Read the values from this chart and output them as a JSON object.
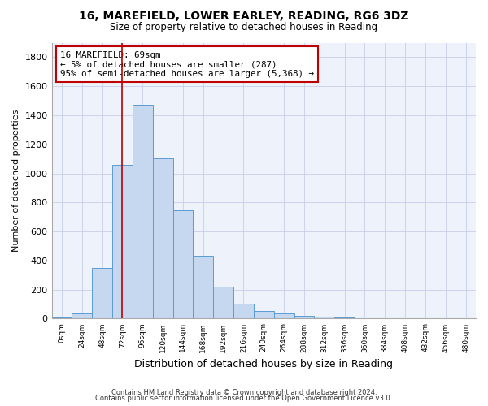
{
  "title1": "16, MAREFIELD, LOWER EARLEY, READING, RG6 3DZ",
  "title2": "Size of property relative to detached houses in Reading",
  "xlabel": "Distribution of detached houses by size in Reading",
  "ylabel": "Number of detached properties",
  "bar_values": [
    10,
    35,
    350,
    1060,
    1470,
    1105,
    745,
    430,
    220,
    105,
    50,
    35,
    20,
    15,
    10,
    5,
    3,
    2,
    2,
    1,
    0
  ],
  "bar_color": "#c5d8f0",
  "bar_edge_color": "#5b9bd5",
  "tick_labels": [
    "0sqm",
    "24sqm",
    "48sqm",
    "72sqm",
    "96sqm",
    "120sqm",
    "144sqm",
    "168sqm",
    "192sqm",
    "216sqm",
    "240sqm",
    "264sqm",
    "288sqm",
    "312sqm",
    "336sqm",
    "360sqm",
    "384sqm",
    "408sqm",
    "432sqm",
    "456sqm",
    "480sqm"
  ],
  "vline_x": 3.0,
  "vline_color": "#c00000",
  "annotation_text": "16 MAREFIELD: 69sqm\n← 5% of detached houses are smaller (287)\n95% of semi-detached houses are larger (5,368) →",
  "annotation_box_color": "#c00000",
  "annotation_text_color": "#000000",
  "ylim": [
    0,
    1900
  ],
  "yticks": [
    0,
    200,
    400,
    600,
    800,
    1000,
    1200,
    1400,
    1600,
    1800
  ],
  "footer1": "Contains HM Land Registry data © Crown copyright and database right 2024.",
  "footer2": "Contains public sector information licensed under the Open Government Licence v3.0.",
  "background_color": "#eef2fb",
  "grid_color": "#c8cfe8"
}
